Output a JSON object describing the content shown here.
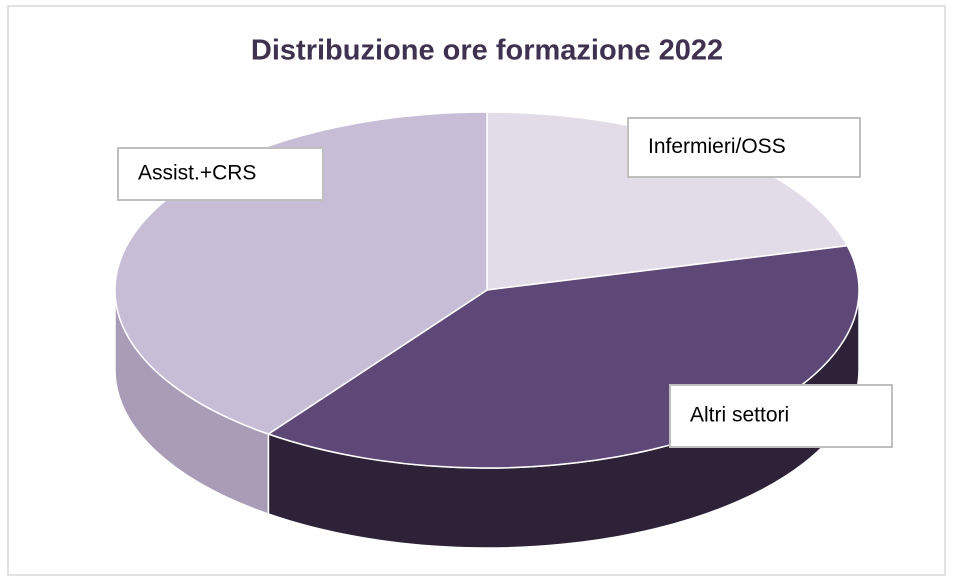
{
  "chart_data": {
    "type": "pie3d",
    "title": "Distribuzione ore formazione 2022",
    "categories": [
      "Infermieri/OSS",
      "Altri settori",
      "Assist.+CRS"
    ],
    "values": [
      21,
      39,
      40
    ],
    "colors": [
      "#e2dbe8",
      "#5e4878",
      "#c7bdd7"
    ],
    "side_colors": [
      "#b8aec4",
      "#2e2238",
      "#a89cb6"
    ]
  }
}
